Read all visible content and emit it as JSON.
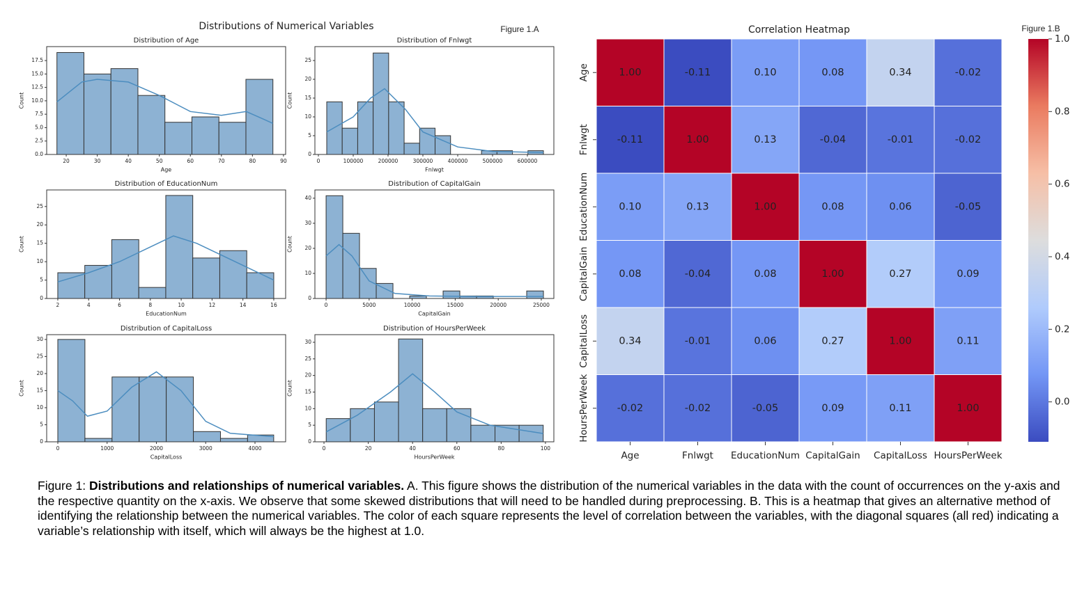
{
  "figure_a": {
    "title": "Distributions of Numerical Variables",
    "label": "Figure 1.A"
  },
  "figure_b": {
    "label": "Figure 1.B"
  },
  "caption": {
    "prefix": "Figure 1: ",
    "bold": "Distributions and relationships of numerical variables.",
    "text": " A. This figure shows the distribution of the numerical variables in the data with the count of occurrences on the y-axis and the respective quantity on the x-axis. We observe that some skewed distributions that will need to be handled during preprocessing.  B. This is a heatmap that gives an alternative method of identifying the relationship between the numerical variables. The color of each square represents the level of correlation between the variables, with the diagonal squares (all red) indicating a variable’s relationship with itself, which will always be the highest at 1.0."
  },
  "chart_data": [
    {
      "type": "histogram",
      "title": "Distribution of Age",
      "xlabel": "Age",
      "ylabel": "Count",
      "color": "#8db2d3",
      "kde_color": "#4c8dbf",
      "bins": [
        17,
        25.7,
        34.4,
        43.1,
        51.8,
        60.5,
        69.2,
        77.9,
        86.6
      ],
      "values": [
        19,
        15,
        16,
        11,
        6,
        7,
        6,
        14
      ],
      "kde_x": [
        17,
        25,
        30,
        40,
        50,
        60,
        70,
        78,
        86.6
      ],
      "kde_values": [
        9.8,
        13.5,
        14,
        13.5,
        11,
        8,
        7.3,
        8,
        5.8
      ],
      "xlim": [
        13.7,
        90.7
      ],
      "ylim": [
        0,
        20.1
      ],
      "xticks": [
        20,
        30,
        40,
        50,
        60,
        70,
        80,
        90
      ],
      "yticks": [
        {
          "value": 0,
          "label": "0.0"
        },
        {
          "value": 2.5,
          "label": "2.5"
        },
        {
          "value": 5,
          "label": "5.0"
        },
        {
          "value": 7.5,
          "label": "7.5"
        },
        {
          "value": 10,
          "label": "10.0"
        },
        {
          "value": 12.5,
          "label": "12.5"
        },
        {
          "value": 15,
          "label": "15.0"
        },
        {
          "value": 17.5,
          "label": "17.5"
        }
      ]
    },
    {
      "type": "histogram",
      "title": "Distribution of Fnlwgt",
      "xlabel": "Fnlwgt",
      "ylabel": "Count",
      "color": "#8db2d3",
      "kde_color": "#4c8dbf",
      "bins": [
        24000,
        68430,
        112860,
        157290,
        201720,
        246150,
        290580,
        335010,
        379440,
        423870,
        468300,
        512730,
        557160,
        601590,
        646000
      ],
      "values": [
        14,
        7,
        14,
        27,
        14,
        3,
        7,
        5,
        0,
        0,
        1,
        1,
        0,
        1
      ],
      "kde_x": [
        24000,
        100000,
        150000,
        190000,
        250000,
        300000,
        400000,
        500000,
        646000
      ],
      "kde_values": [
        6,
        10,
        15,
        17.5,
        12,
        6,
        2,
        0.8,
        0.5
      ],
      "xlim": [
        -10000,
        676000
      ],
      "ylim": [
        0,
        28.7
      ],
      "xticks": [
        0,
        100000,
        200000,
        300000,
        400000,
        500000,
        600000
      ],
      "yticks": [
        0,
        5,
        10,
        15,
        20,
        25
      ]
    },
    {
      "type": "histogram",
      "title": "Distribution of EducationNum",
      "xlabel": "EducationNum",
      "ylabel": "Count",
      "color": "#8db2d3",
      "kde_color": "#4c8dbf",
      "bins": [
        2,
        3.75,
        5.5,
        7.25,
        9,
        10.75,
        12.5,
        14.25,
        16
      ],
      "values": [
        7,
        9,
        16,
        3,
        28,
        11,
        13,
        7
      ],
      "kde_x": [
        2,
        4,
        6,
        8,
        9.5,
        11,
        13,
        16
      ],
      "kde_values": [
        4.5,
        7,
        10,
        14,
        17,
        15,
        11,
        5
      ],
      "xlim": [
        1.28,
        16.77
      ],
      "ylim": [
        0,
        29.5
      ],
      "xticks": [
        2,
        4,
        6,
        8,
        10,
        12,
        14,
        16
      ],
      "yticks": [
        0,
        5,
        10,
        15,
        20,
        25
      ]
    },
    {
      "type": "histogram",
      "title": "Distribution of CapitalGain",
      "xlabel": "CapitalGain",
      "ylabel": "Count",
      "color": "#8db2d3",
      "kde_color": "#4c8dbf",
      "bins": [
        0,
        1942,
        3884,
        5826,
        7768,
        9710,
        11652,
        13594,
        15536,
        17478,
        19420,
        21362,
        23304,
        25250
      ],
      "values": [
        41,
        26,
        12,
        6,
        0,
        1,
        0,
        3,
        1,
        1,
        0,
        0,
        3
      ],
      "kde_x": [
        0,
        1500,
        3000,
        5000,
        8000,
        12000,
        18000,
        25250
      ],
      "kde_values": [
        17,
        21.5,
        17,
        7,
        2,
        1,
        0.8,
        0.8
      ],
      "xlim": [
        -1300,
        26460
      ],
      "ylim": [
        0,
        43.3
      ],
      "xticks": [
        0,
        5000,
        10000,
        15000,
        20000,
        25000
      ],
      "yticks": [
        0,
        10,
        20,
        30,
        40
      ]
    },
    {
      "type": "histogram",
      "title": "Distribution of CapitalLoss",
      "xlabel": "CapitalLoss",
      "ylabel": "Count",
      "color": "#8db2d3",
      "kde_color": "#4c8dbf",
      "bins": [
        0,
        550,
        1100,
        1650,
        2200,
        2750,
        3300,
        3850,
        4380
      ],
      "values": [
        30,
        1,
        19,
        19,
        19,
        3,
        1,
        2
      ],
      "kde_x": [
        0,
        300,
        600,
        1000,
        1500,
        2000,
        2500,
        3000,
        3500,
        4380
      ],
      "kde_values": [
        15,
        12,
        7.5,
        9,
        16,
        20.5,
        15,
        6,
        2.5,
        1.5
      ],
      "xlim": [
        -226,
        4622
      ],
      "ylim": [
        0,
        31.4
      ],
      "xticks": [
        0,
        1000,
        2000,
        3000,
        4000
      ],
      "yticks": [
        0,
        5,
        10,
        15,
        20,
        25,
        30
      ]
    },
    {
      "type": "histogram",
      "title": "Distribution of HoursPerWeek",
      "xlabel": "HoursPerWeek",
      "ylabel": "Count",
      "color": "#8db2d3",
      "kde_color": "#4c8dbf",
      "bins": [
        1,
        11.89,
        22.78,
        33.67,
        44.56,
        55.44,
        66.33,
        77.22,
        88.11,
        99
      ],
      "values": [
        7,
        10,
        12,
        31,
        10,
        10,
        5,
        5,
        5
      ],
      "kde_x": [
        1,
        15,
        30,
        40,
        50,
        60,
        75,
        99
      ],
      "kde_values": [
        3,
        8,
        15,
        20.5,
        15,
        9,
        5,
        2.5
      ],
      "xlim": [
        -4.1,
        103.8
      ],
      "ylim": [
        0,
        32.3
      ],
      "xticks": [
        0,
        20,
        40,
        60,
        80,
        100
      ],
      "yticks": [
        0,
        5,
        10,
        15,
        20,
        25,
        30
      ]
    },
    {
      "type": "heatmap",
      "title": "Correlation Heatmap",
      "categories": [
        "Age",
        "Fnlwgt",
        "EducationNum",
        "CapitalGain",
        "CapitalLoss",
        "HoursPerWeek"
      ],
      "values": [
        [
          1,
          -0.11,
          0.1,
          0.08,
          0.34,
          -0.02
        ],
        [
          -0.11,
          1,
          0.13,
          -0.04,
          -0.01,
          -0.02
        ],
        [
          0.1,
          0.13,
          1,
          0.08,
          0.06,
          -0.05
        ],
        [
          0.08,
          -0.04,
          0.08,
          1,
          0.27,
          0.09
        ],
        [
          0.34,
          -0.01,
          0.06,
          0.27,
          1,
          0.11
        ],
        [
          -0.02,
          -0.02,
          -0.05,
          0.09,
          0.11,
          1
        ]
      ],
      "value_labels": [
        [
          "1.00",
          "-0.11",
          "0.10",
          "0.08",
          "0.34",
          "-0.02"
        ],
        [
          "-0.11",
          "1.00",
          "0.13",
          "-0.04",
          "-0.01",
          "-0.02"
        ],
        [
          "0.10",
          "0.13",
          "1.00",
          "0.08",
          "0.06",
          "-0.05"
        ],
        [
          "0.08",
          "-0.04",
          "0.08",
          "1.00",
          "0.27",
          "0.09"
        ],
        [
          "0.34",
          "-0.01",
          "0.06",
          "0.27",
          "1.00",
          "0.11"
        ],
        [
          "-0.02",
          "-0.02",
          "-0.05",
          "0.09",
          "0.11",
          "1.00"
        ]
      ],
      "clim": [
        -0.11,
        1.0
      ],
      "colormap": [
        "#3b4cc0",
        "#7396f5",
        "#b0cbfc",
        "#dddddd",
        "#f6bfa6",
        "#ea7b60",
        "#b40426"
      ],
      "cticks": [
        {
          "value": 0,
          "label": "0.0"
        },
        {
          "value": 0.2,
          "label": "0.2"
        },
        {
          "value": 0.4,
          "label": "0.4"
        },
        {
          "value": 0.6,
          "label": "0.6"
        },
        {
          "value": 0.8,
          "label": "0.8"
        },
        {
          "value": 1,
          "label": "1.0"
        }
      ]
    }
  ]
}
